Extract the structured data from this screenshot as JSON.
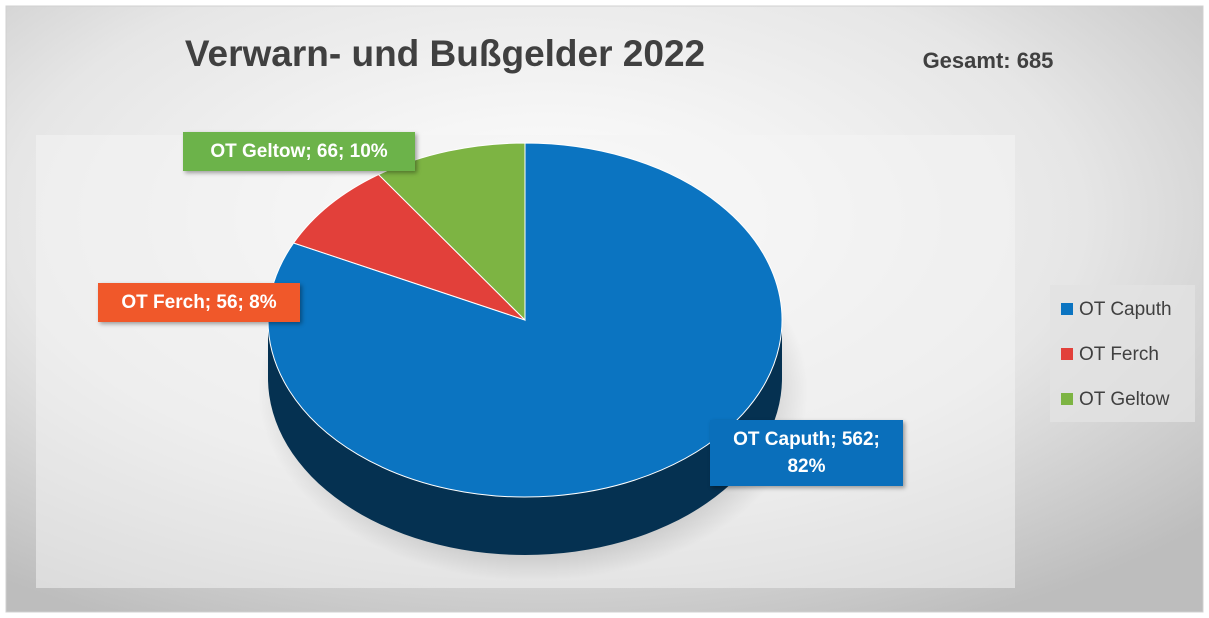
{
  "chart_data": {
    "type": "pie3d",
    "title": "Verwarn- und Bußgelder 2022",
    "annotation": "Gesamt: 685",
    "categories": [
      "OT Caputh",
      "OT Ferch",
      "OT Geltow"
    ],
    "values": [
      562,
      56,
      66
    ],
    "value_labels": [
      "OT Caputh; 562; 82%",
      "OT Ferch; 56; 8%",
      "OT Geltow; 66; 10%"
    ],
    "colors": [
      "#0b74c1",
      "#e2403a",
      "#7db443"
    ],
    "label_colors": [
      "#0a6fbb",
      "#f0582a",
      "#6cb34a"
    ],
    "legend": "right"
  }
}
